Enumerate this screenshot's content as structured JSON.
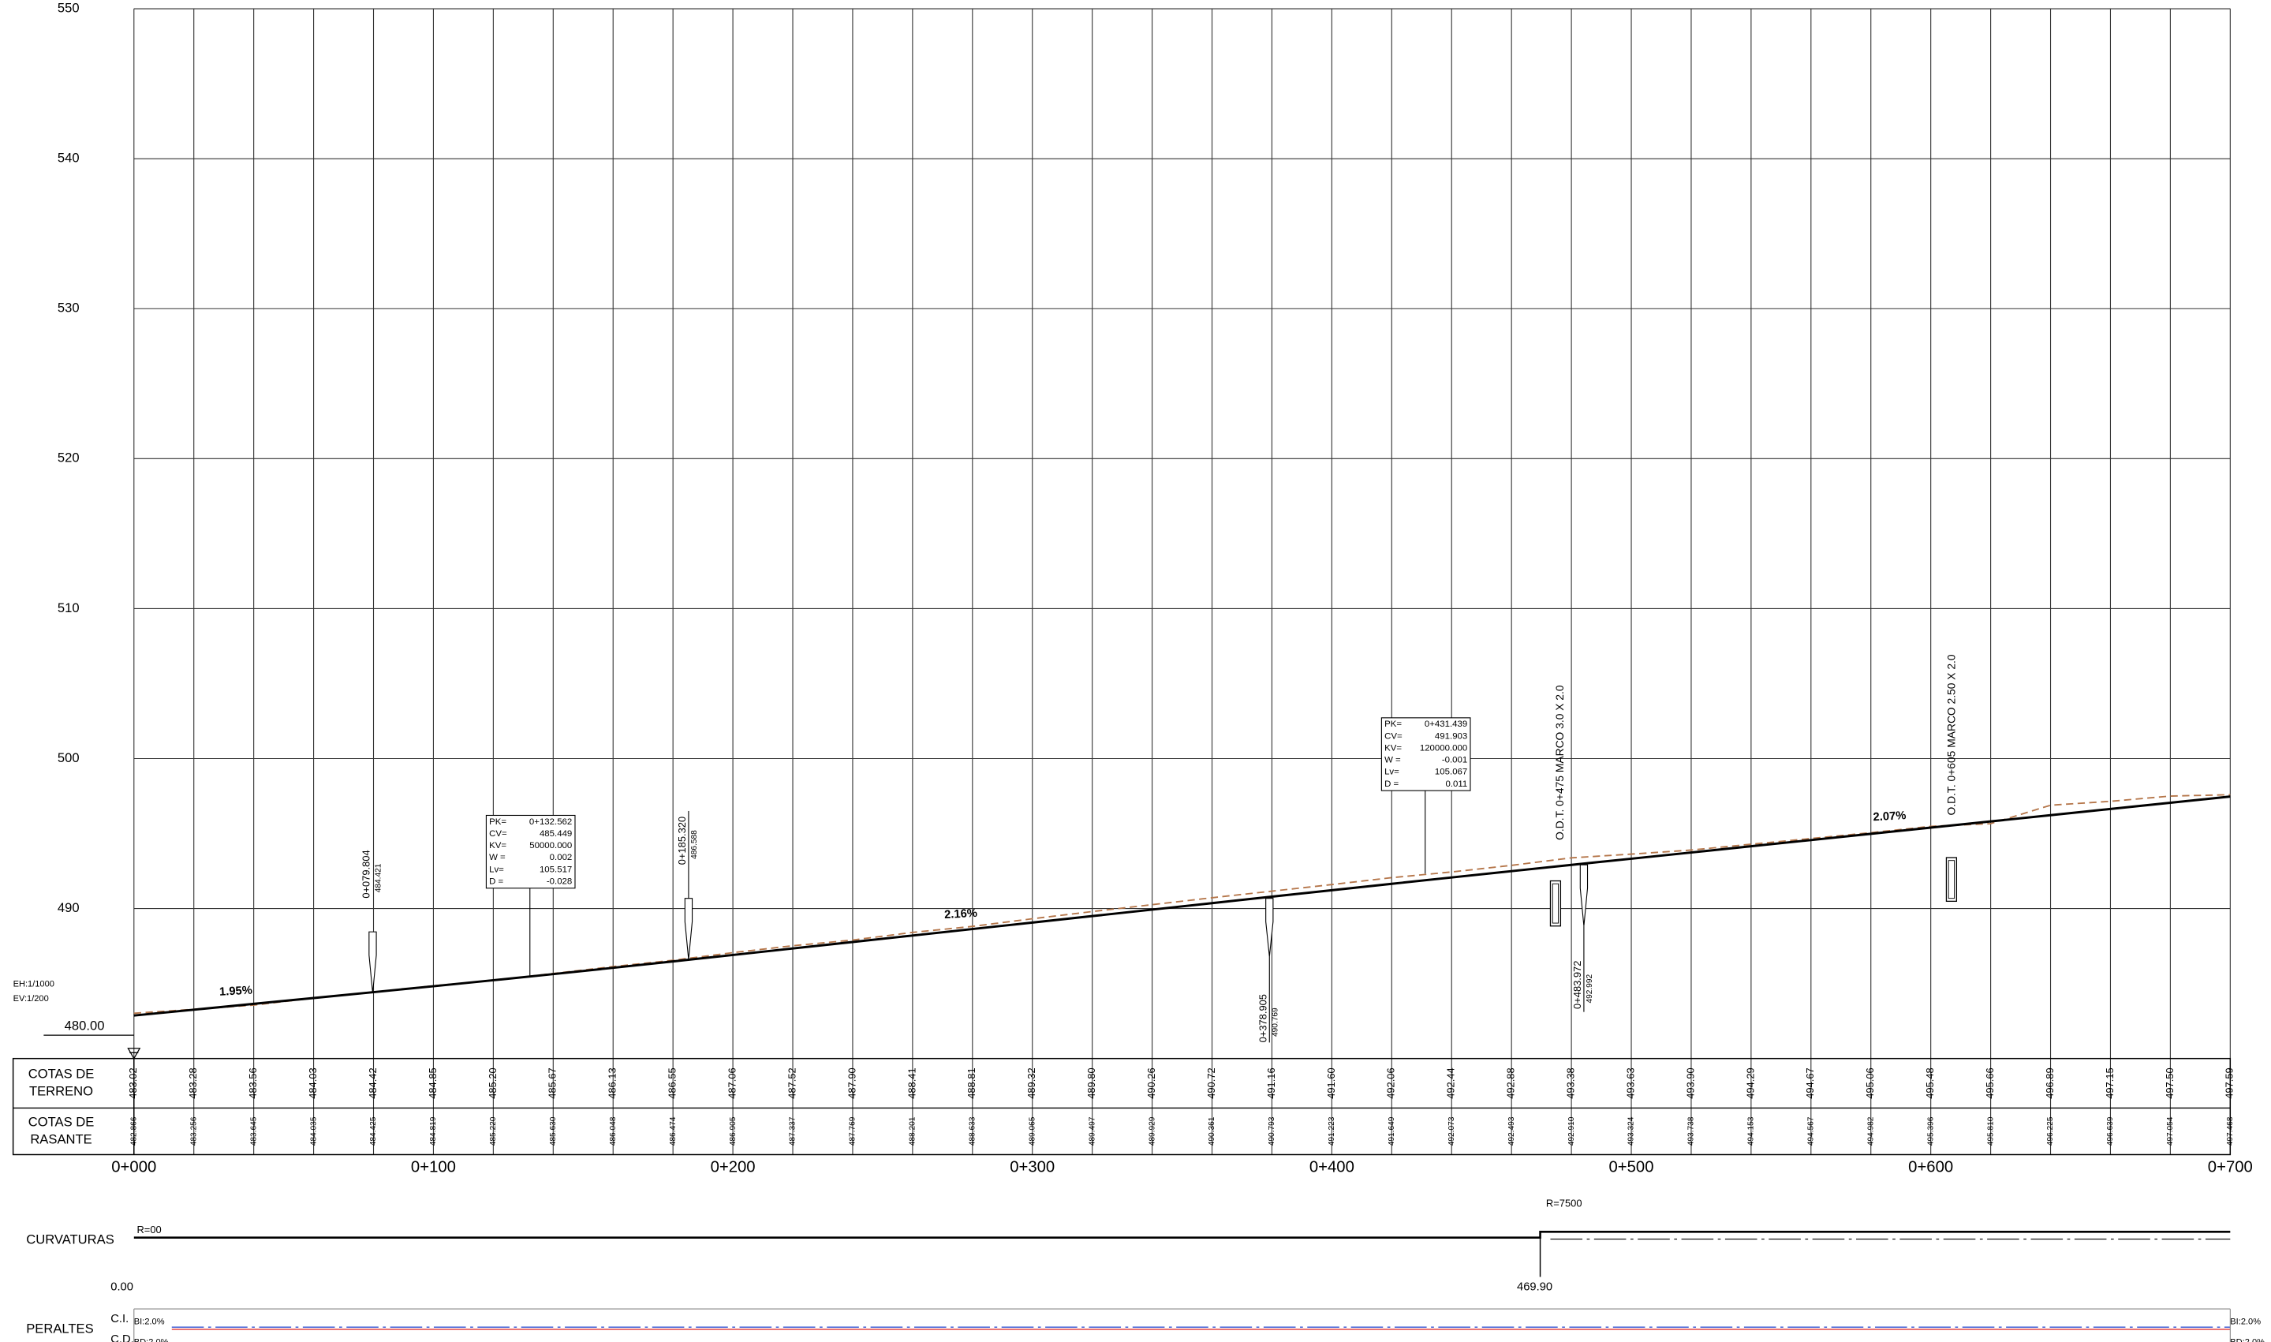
{
  "chart_data": {
    "type": "line",
    "x": [
      0,
      20,
      40,
      60,
      80,
      100,
      120,
      140,
      160,
      180,
      200,
      220,
      240,
      260,
      280,
      300,
      320,
      340,
      360,
      380,
      400,
      420,
      440,
      460,
      480,
      500,
      520,
      540,
      560,
      580,
      600,
      620,
      640,
      660,
      680,
      700
    ],
    "xlim": [
      0,
      700
    ],
    "xticks": [
      {
        "value": 0,
        "label": "0+000"
      },
      {
        "value": 100,
        "label": "0+100"
      },
      {
        "value": 200,
        "label": "0+200"
      },
      {
        "value": 300,
        "label": "0+300"
      },
      {
        "value": 400,
        "label": "0+400"
      },
      {
        "value": 500,
        "label": "0+500"
      },
      {
        "value": 600,
        "label": "0+600"
      },
      {
        "value": 700,
        "label": "0+700"
      }
    ],
    "ylim": [
      480,
      550
    ],
    "yticks": [
      490,
      500,
      510,
      520,
      530,
      540,
      550
    ],
    "datum": {
      "value": 480,
      "label": "480.00"
    },
    "grid": true,
    "series": [
      {
        "row_label": [
          "COTAS DE",
          "TERRENO"
        ],
        "color": "#b5764a",
        "dashed": true,
        "values": [
          483.02,
          483.28,
          483.56,
          484.03,
          484.42,
          484.85,
          485.2,
          485.67,
          486.13,
          486.55,
          487.06,
          487.52,
          487.9,
          488.41,
          488.81,
          489.32,
          489.8,
          490.26,
          490.72,
          491.16,
          491.6,
          492.06,
          492.44,
          492.88,
          493.38,
          493.63,
          493.9,
          494.29,
          494.67,
          495.06,
          495.48,
          495.66,
          496.89,
          497.15,
          497.5,
          497.59
        ],
        "value_labels": [
          "483.02",
          "483.28",
          "483.56",
          "484.03",
          "484.42",
          "484.85",
          "485.20",
          "485.67",
          "486.13",
          "486.55",
          "487.06",
          "487.52",
          "487.90",
          "488.41",
          "488.81",
          "489.32",
          "489.80",
          "490.26",
          "490.72",
          "491.16",
          "491.60",
          "492.06",
          "492.44",
          "492.88",
          "493.38",
          "493.63",
          "493.90",
          "494.29",
          "494.67",
          "495.06",
          "495.48",
          "495.66",
          "496.89",
          "497.15",
          "497.50",
          "497.59"
        ]
      },
      {
        "row_label": [
          "COTAS DE",
          "RASANTE"
        ],
        "color": "#000000",
        "dashed": false,
        "values": [
          482.866,
          483.256,
          483.645,
          484.035,
          484.425,
          484.819,
          485.22,
          485.63,
          486.048,
          486.474,
          486.905,
          487.337,
          487.769,
          488.201,
          488.633,
          489.065,
          489.497,
          489.929,
          490.361,
          490.793,
          491.223,
          491.649,
          492.073,
          492.493,
          492.91,
          493.324,
          493.738,
          494.153,
          494.567,
          494.982,
          495.396,
          495.81,
          496.225,
          496.639,
          497.054,
          497.468
        ],
        "value_labels": [
          "482.866",
          "483.256",
          "483.645",
          "484.035",
          "484.425",
          "484.819",
          "485.220",
          "485.630",
          "486.048",
          "486.474",
          "486.905",
          "487.337",
          "487.769",
          "488.201",
          "488.633",
          "489.065",
          "489.497",
          "489.929",
          "490.361",
          "490.793",
          "491.223",
          "491.649",
          "492.073",
          "492.493",
          "492.910",
          "493.324",
          "493.738",
          "494.153",
          "494.567",
          "494.982",
          "495.396",
          "495.810",
          "496.225",
          "496.639",
          "497.054",
          "497.468"
        ]
      }
    ],
    "scale_labels": [
      "EH:1/1000",
      "EV:1/200"
    ],
    "grades": [
      "1.95%",
      "2.16%",
      "2.07%"
    ],
    "vertical_curves": [
      {
        "rows": [
          [
            "PK=",
            "0+132.562"
          ],
          [
            "CV=",
            "485.449"
          ],
          [
            "KV=",
            "50000.000"
          ],
          [
            "W =",
            "0.002"
          ],
          [
            "Lv=",
            "105.517"
          ],
          [
            "D =",
            "-0.028"
          ]
        ]
      },
      {
        "rows": [
          [
            "PK=",
            "0+431.439"
          ],
          [
            "CV=",
            "491.903"
          ],
          [
            "KV=",
            "120000.000"
          ],
          [
            "W =",
            "-0.001"
          ],
          [
            "Lv=",
            "105.067"
          ],
          [
            "D =",
            "0.011"
          ]
        ]
      }
    ],
    "points": [
      [
        "0+079.804",
        "484.421"
      ],
      [
        "0+185.320",
        "486.588"
      ],
      [
        "0+378.905",
        "490.769"
      ],
      [
        "0+483.972",
        "492.992"
      ]
    ],
    "culverts": [
      "O.D.T. 0+475 MARCO 3.0 X 2.0",
      "O.D.T. 0+605 MARCO 2.50 X 2.0"
    ]
  },
  "curvatures": {
    "label": "CURVATURAS",
    "radii": [
      "R=00",
      "R=7500"
    ],
    "stations": [
      "0.00",
      "469.90"
    ]
  },
  "superelevation": {
    "label": "PERALTES",
    "rows": [
      "C.I.",
      "C.D."
    ],
    "start": [
      "BI:2.0%",
      "BD:2.0%"
    ],
    "end": [
      "BI:2.0%",
      "BD:2.0%"
    ]
  }
}
